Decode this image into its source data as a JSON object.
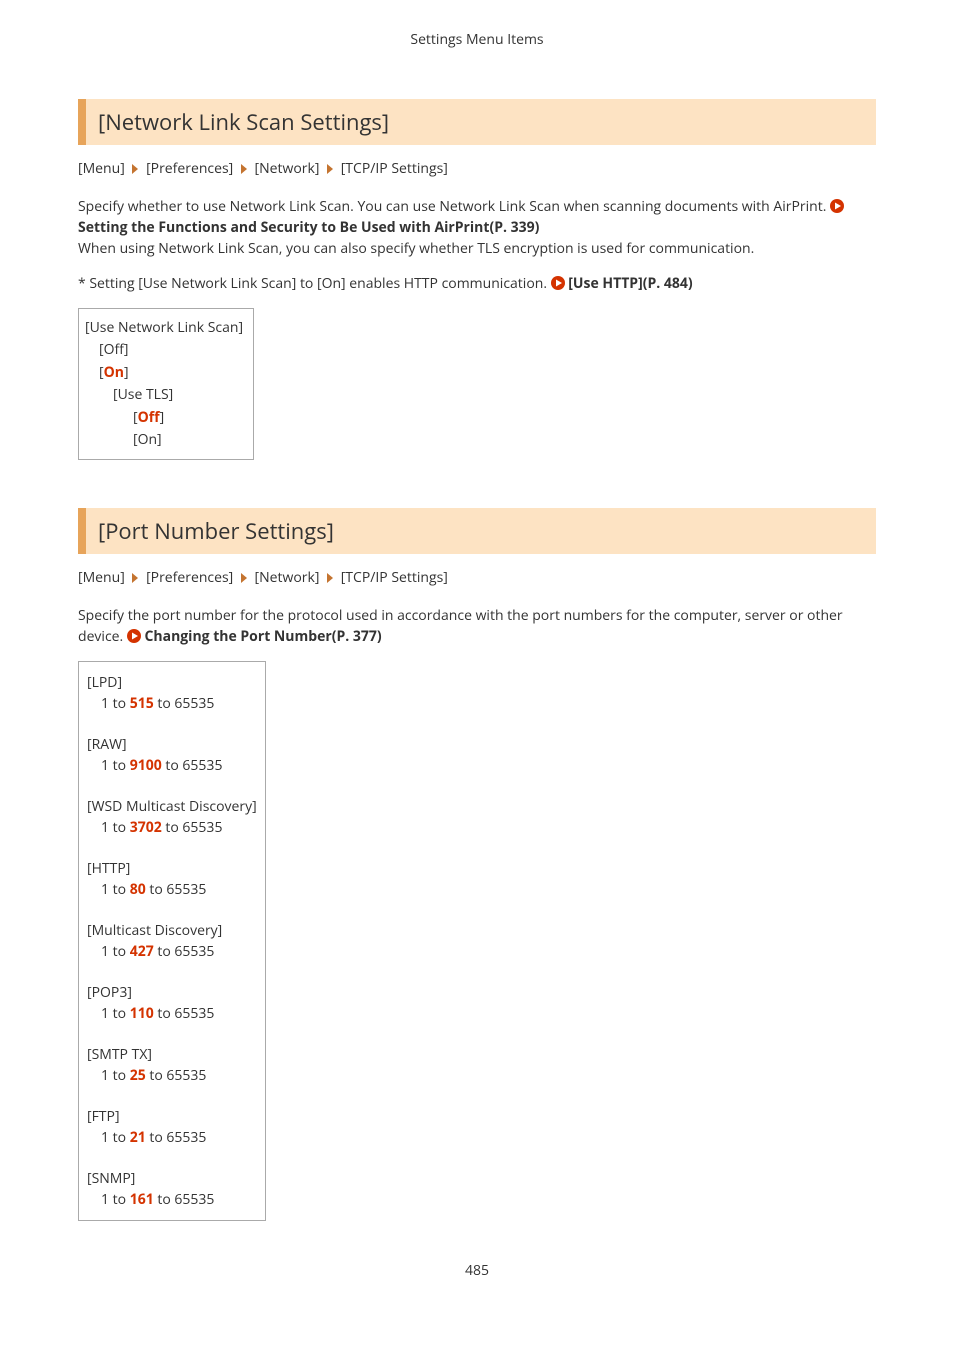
{
  "header": "Settings Menu Items",
  "pageNumber": "485",
  "colors": {
    "accentRed": "#d43300",
    "sectionBg": "#fde3c3",
    "sectionBorder": "#e7a45a",
    "chevron": "#c47430",
    "linkIconBg": "#d43300"
  },
  "section1": {
    "title": "[Network Link Scan Settings]",
    "breadcrumb": [
      "[Menu]",
      "[Preferences]",
      "[Network]",
      "[TCP/IP Settings]"
    ],
    "para1a": "Specify whether to use Network Link Scan. You can use Network Link Scan when scanning documents with AirPrint. ",
    "link1": "Setting the Functions and Security to Be Used with AirPrint(P. 339)",
    "para2": "When using Network Link Scan, you can also specify whether TLS encryption is used for communication.",
    "note1a": "* Setting [Use Network Link Scan] to [On] enables HTTP communication. ",
    "noteLink": "[Use HTTP](P. 484)",
    "options": {
      "l1": "[Use Network Link Scan]",
      "l2": "[Off]",
      "l3a": "[",
      "l3b": "On",
      "l3c": "]",
      "l4": "[Use TLS]",
      "l5a": "[",
      "l5b": "Off",
      "l5c": "]",
      "l6": "[On]"
    }
  },
  "section2": {
    "title": "[Port Number Settings]",
    "breadcrumb": [
      "[Menu]",
      "[Preferences]",
      "[Network]",
      "[TCP/IP Settings]"
    ],
    "para1a": "Specify the port number for the protocol used in accordance with the port numbers for the computer, server or other device. ",
    "link1": "Changing the Port Number(P. 377)",
    "rangePrefix": "1 to ",
    "rangeSuffix": " to 65535",
    "ports": [
      {
        "name": "[LPD]",
        "default": "515"
      },
      {
        "name": "[RAW]",
        "default": "9100"
      },
      {
        "name": "[WSD Multicast Discovery]",
        "default": "3702"
      },
      {
        "name": "[HTTP]",
        "default": "80"
      },
      {
        "name": "[Multicast Discovery]",
        "default": "427"
      },
      {
        "name": "[POP3]",
        "default": "110"
      },
      {
        "name": "[SMTP TX]",
        "default": "25"
      },
      {
        "name": "[FTP]",
        "default": "21"
      },
      {
        "name": "[SNMP]",
        "default": "161"
      }
    ]
  }
}
